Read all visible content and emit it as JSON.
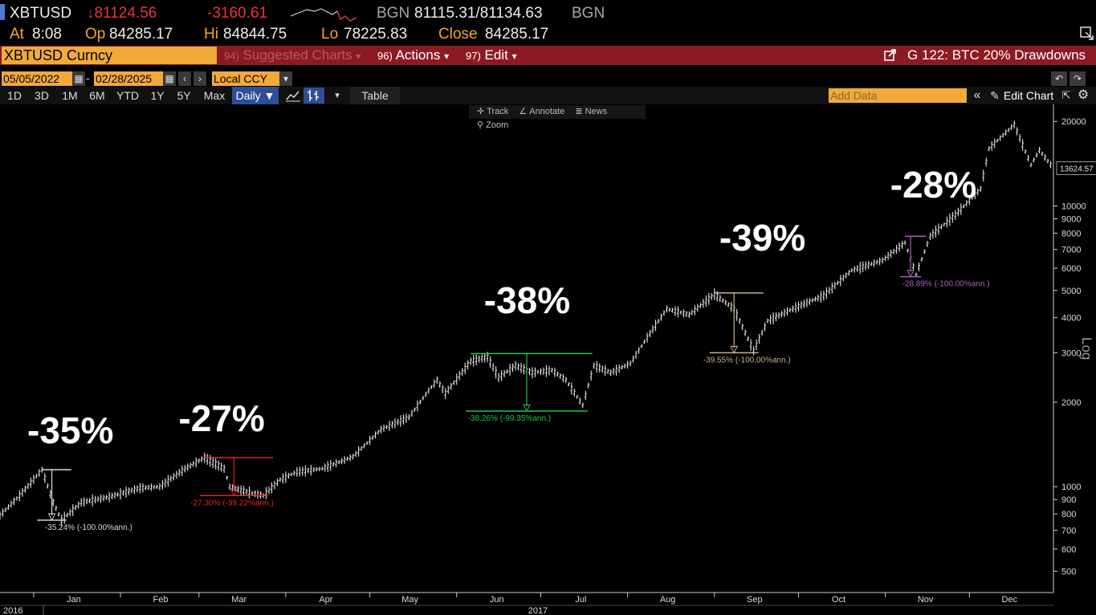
{
  "quote": {
    "ticker": "XBTUSD",
    "last": "↓81124.56",
    "change": "-3160.61",
    "bid_src": "BGN",
    "bid_ask": "81115.31/81134.63",
    "ask_src": "BGN",
    "at_label": "At",
    "at_value": "8:08",
    "open_label": "Op",
    "open_value": "84285.17",
    "high_label": "Hi",
    "high_value": "84844.75",
    "low_label": "Lo",
    "low_value": "78225.83",
    "close_label": "Close",
    "close_value": "84285.17"
  },
  "command_bar": {
    "security": "XBTUSD Curncy",
    "menus": [
      {
        "num": "94)",
        "label": "Suggested Charts",
        "arrow": "▾"
      },
      {
        "num": "96)",
        "label": "Actions",
        "arrow": "▾"
      },
      {
        "num": "97)",
        "label": "Edit",
        "arrow": "▾"
      }
    ],
    "chart_title": "G 122: BTC 20% Drawdowns"
  },
  "date_bar": {
    "start_date": "05/05/2022",
    "dash": "-",
    "end_date": "02/28/2025",
    "currency": "Local CCY"
  },
  "range_bar": {
    "ranges": [
      "1D",
      "3D",
      "1M",
      "6M",
      "YTD",
      "1Y",
      "5Y",
      "Max"
    ],
    "frequency": "Daily ▼",
    "table_label": "Table",
    "add_data_placeholder": "Add Data",
    "edit_chart": "Edit Chart"
  },
  "tools": [
    "Track",
    "Annotate",
    "News",
    "Zoom"
  ],
  "icons": [
    "calendar-icon",
    "chevron-left-icon",
    "chevron-right-icon",
    "dropdown-icon",
    "undo-icon",
    "redo-icon",
    "line-chart-icon",
    "bar-chart-icon",
    "double-chevron-icon",
    "pencil-icon",
    "export-icon",
    "gear-icon",
    "launch-icon"
  ],
  "colors": {
    "amber": "#f6a623",
    "red": "#e8343d",
    "command_bar": "#8c1a22",
    "series": "#e6e6e6",
    "dd_white": "#d8d8d8",
    "dd_red": "#e02424",
    "dd_green": "#27c24a",
    "dd_tan": "#c6b48a",
    "dd_purple": "#b05cc0"
  },
  "chart_data": {
    "type": "line",
    "y_scale": "log",
    "y_axis_label": "Log",
    "ylim": [
      420,
      23000
    ],
    "y_ticks": [
      {
        "v": 500,
        "label": "500"
      },
      {
        "v": 600,
        "label": "600"
      },
      {
        "v": 700,
        "label": "700"
      },
      {
        "v": 800,
        "label": "800"
      },
      {
        "v": 900,
        "label": "900"
      },
      {
        "v": 1000,
        "label": "1000"
      },
      {
        "v": 2000,
        "label": "2000"
      },
      {
        "v": 3000,
        "label": "3000"
      },
      {
        "v": 4000,
        "label": "4000"
      },
      {
        "v": 5000,
        "label": "5000"
      },
      {
        "v": 6000,
        "label": "6000"
      },
      {
        "v": 7000,
        "label": "7000"
      },
      {
        "v": 8000,
        "label": "8000"
      },
      {
        "v": 9000,
        "label": "9000"
      },
      {
        "v": 10000,
        "label": "10000"
      },
      {
        "v": 20000,
        "label": "20000"
      }
    ],
    "last_value_label": "13624.57",
    "last_value": 13624.57,
    "x_range": [
      "2016-12-20",
      "2017-12-31"
    ],
    "x_months": [
      {
        "date": "2017-01-01",
        "label": "Jan"
      },
      {
        "date": "2017-02-01",
        "label": "Feb"
      },
      {
        "date": "2017-03-01",
        "label": "Mar"
      },
      {
        "date": "2017-04-01",
        "label": "Apr"
      },
      {
        "date": "2017-05-01",
        "label": "May"
      },
      {
        "date": "2017-06-01",
        "label": "Jun"
      },
      {
        "date": "2017-07-01",
        "label": "Jul"
      },
      {
        "date": "2017-08-01",
        "label": "Aug"
      },
      {
        "date": "2017-09-01",
        "label": "Sep"
      },
      {
        "date": "2017-10-01",
        "label": "Oct"
      },
      {
        "date": "2017-11-01",
        "label": "Nov"
      },
      {
        "date": "2017-12-01",
        "label": "Dec"
      }
    ],
    "x_years": [
      {
        "date": "2016-12-20",
        "label": "2016"
      },
      {
        "date": "2017-06-30",
        "label": "2017"
      }
    ],
    "series": [
      {
        "points": [
          [
            "2016-12-20",
            790
          ],
          [
            "2016-12-27",
            930
          ],
          [
            "2017-01-04",
            1150
          ],
          [
            "2017-01-08",
            880
          ],
          [
            "2017-01-11",
            760
          ],
          [
            "2017-01-18",
            880
          ],
          [
            "2017-01-28",
            920
          ],
          [
            "2017-02-08",
            990
          ],
          [
            "2017-02-15",
            1000
          ],
          [
            "2017-02-24",
            1160
          ],
          [
            "2017-03-03",
            1270
          ],
          [
            "2017-03-10",
            1160
          ],
          [
            "2017-03-12",
            1000
          ],
          [
            "2017-03-18",
            960
          ],
          [
            "2017-03-24",
            930
          ],
          [
            "2017-03-30",
            1060
          ],
          [
            "2017-04-05",
            1130
          ],
          [
            "2017-04-14",
            1160
          ],
          [
            "2017-04-25",
            1280
          ],
          [
            "2017-05-05",
            1600
          ],
          [
            "2017-05-15",
            1770
          ],
          [
            "2017-05-22",
            2200
          ],
          [
            "2017-05-25",
            2400
          ],
          [
            "2017-05-28",
            2150
          ],
          [
            "2017-06-06",
            2800
          ],
          [
            "2017-06-12",
            2900
          ],
          [
            "2017-06-16",
            2450
          ],
          [
            "2017-06-22",
            2700
          ],
          [
            "2017-06-28",
            2550
          ],
          [
            "2017-07-05",
            2600
          ],
          [
            "2017-07-10",
            2400
          ],
          [
            "2017-07-16",
            1950
          ],
          [
            "2017-07-20",
            2700
          ],
          [
            "2017-07-26",
            2550
          ],
          [
            "2017-08-02",
            2750
          ],
          [
            "2017-08-08",
            3400
          ],
          [
            "2017-08-15",
            4300
          ],
          [
            "2017-08-23",
            4100
          ],
          [
            "2017-09-01",
            4850
          ],
          [
            "2017-09-08",
            4300
          ],
          [
            "2017-09-15",
            3050
          ],
          [
            "2017-09-20",
            3900
          ],
          [
            "2017-09-30",
            4350
          ],
          [
            "2017-10-10",
            4800
          ],
          [
            "2017-10-20",
            5900
          ],
          [
            "2017-10-31",
            6400
          ],
          [
            "2017-11-08",
            7400
          ],
          [
            "2017-11-12",
            5700
          ],
          [
            "2017-11-17",
            7800
          ],
          [
            "2017-11-26",
            9300
          ],
          [
            "2017-12-05",
            11500
          ],
          [
            "2017-12-08",
            16000
          ],
          [
            "2017-12-17",
            19500
          ],
          [
            "2017-12-20",
            16500
          ],
          [
            "2017-12-23",
            14000
          ],
          [
            "2017-12-26",
            15800
          ],
          [
            "2017-12-31",
            13624.57
          ]
        ]
      }
    ],
    "annotations": [
      {
        "text": "-35%",
        "x": "2016-12-20",
        "y": 1430
      },
      {
        "text": "-27%",
        "x": "2017-02-12",
        "y": 1580
      },
      {
        "text": "-38%",
        "x": "2017-06-01",
        "y": 4150
      },
      {
        "text": "-39%",
        "x": "2017-08-24",
        "y": 6950
      },
      {
        "text": "-28%",
        "x": "2017-10-24",
        "y": 10700
      }
    ],
    "drawdowns": [
      {
        "label": "-35.24% (-100.00%ann.)",
        "color": "#d8d8d8",
        "start": "2017-01-04",
        "end": "2017-01-11",
        "high": 1150,
        "low": 760,
        "label_x": "2017-01-05"
      },
      {
        "label": "-27.30% (-99.22%ann.)",
        "color": "#e02424",
        "start": "2017-03-03",
        "end": "2017-03-24",
        "high": 1270,
        "low": 930,
        "label_x": "2017-02-26"
      },
      {
        "label": "-38.26% (-99.35%ann.)",
        "color": "#27c24a",
        "start": "2017-06-06",
        "end": "2017-07-16",
        "high": 2980,
        "low": 1860,
        "label_x": "2017-06-05"
      },
      {
        "label": "-39.55% (-100.00%ann.)",
        "color": "#c6b48a",
        "start": "2017-09-01",
        "end": "2017-09-15",
        "high": 4900,
        "low": 3000,
        "label_x": "2017-08-28"
      },
      {
        "label": "-28.89% (-100.00%ann.)",
        "color": "#b05cc0",
        "start": "2017-11-08",
        "end": "2017-11-12",
        "high": 7800,
        "low": 5600,
        "label_x": "2017-11-07"
      }
    ]
  }
}
